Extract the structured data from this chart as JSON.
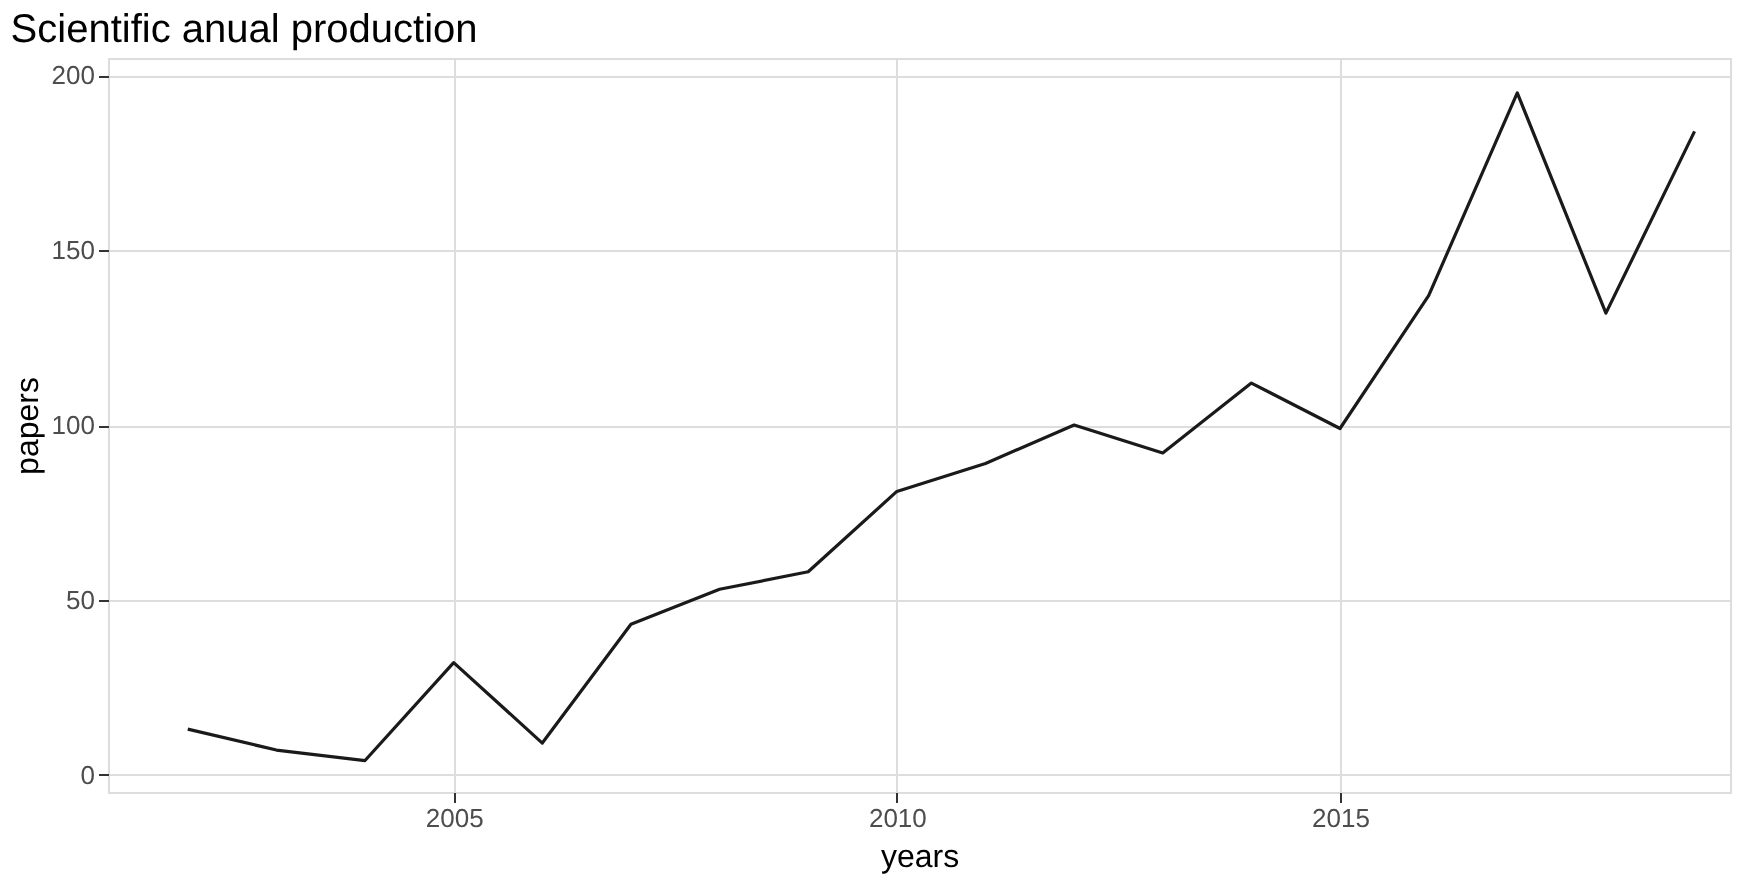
{
  "chart_data": {
    "type": "line",
    "title": "Scientific anual production",
    "xlabel": "years",
    "ylabel": "papers",
    "x": [
      2002,
      2003,
      2004,
      2005,
      2006,
      2007,
      2008,
      2009,
      2010,
      2011,
      2012,
      2013,
      2014,
      2015,
      2016,
      2017,
      2018,
      2019
    ],
    "series": [
      {
        "color": "#1a1a1a",
        "values": [
          13,
          7,
          4,
          32,
          9,
          43,
          53,
          58,
          81,
          89,
          100,
          92,
          112,
          99,
          137,
          195,
          132,
          184
        ]
      }
    ],
    "xlim": [
      2001.1,
      2019.4
    ],
    "xticks": [
      2005,
      2010,
      2015
    ],
    "ylim": [
      -5,
      205
    ],
    "yticks": [
      0,
      50,
      100,
      150,
      200
    ],
    "grid": true,
    "legend": false,
    "marker": "none",
    "line_style": "solid"
  }
}
